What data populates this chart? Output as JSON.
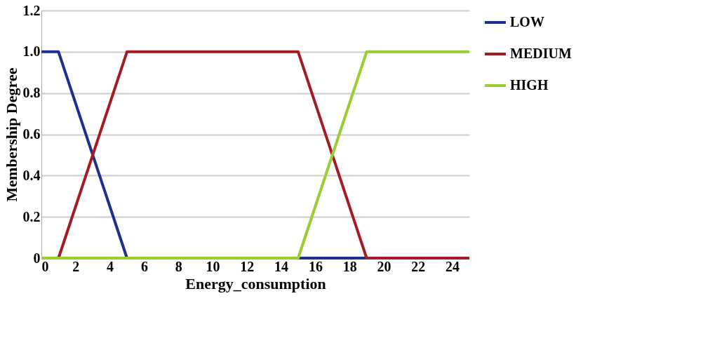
{
  "chart_data": {
    "type": "line",
    "xlabel": "Energy_consumption",
    "ylabel": "Membership Degree",
    "series": [
      {
        "name": "LOW",
        "color": "#1f2f8f",
        "x": [
          0,
          1,
          5,
          25
        ],
        "values": [
          1,
          1,
          0,
          0
        ]
      },
      {
        "name": "MEDIUM",
        "color": "#a31c24",
        "x": [
          1,
          5,
          15,
          19,
          25
        ],
        "values": [
          0,
          1,
          1,
          0,
          0
        ]
      },
      {
        "name": "HIGH",
        "color": "#9acd32",
        "x": [
          0,
          15,
          19,
          25
        ],
        "values": [
          0,
          0,
          1,
          1
        ]
      }
    ],
    "xlim": [
      0,
      25
    ],
    "xticks": [
      0,
      2,
      4,
      6,
      8,
      10,
      12,
      14,
      16,
      18,
      20,
      22,
      24
    ],
    "ylim": [
      0,
      1.2
    ],
    "yticks": [
      0,
      0.2,
      0.4,
      0.6,
      0.8,
      {
        "value": 1,
        "label": "1.0"
      },
      1.2
    ],
    "grid": "y",
    "legend": "right",
    "marker": "none",
    "line_style": "solid"
  }
}
